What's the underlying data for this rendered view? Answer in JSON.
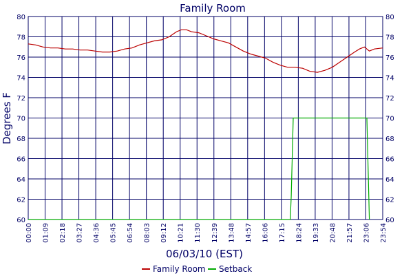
{
  "chart_data": {
    "type": "line",
    "title": "Family Room",
    "xlabel": "06/03/10 (EST)",
    "ylabel": "Degrees F",
    "x_ticks": [
      "00:00",
      "01:09",
      "02:18",
      "03:27",
      "04:36",
      "05:45",
      "06:54",
      "08:03",
      "09:12",
      "10:21",
      "11:30",
      "12:39",
      "13:48",
      "14:57",
      "16:06",
      "17:15",
      "18:24",
      "19:33",
      "20:48",
      "21:57",
      "23:06",
      "23:54"
    ],
    "ylim": [
      60,
      80
    ],
    "y_ticks": [
      60,
      62,
      64,
      66,
      68,
      70,
      72,
      74,
      76,
      78,
      80
    ],
    "grid": true,
    "right_axis": true,
    "legend_position": "bottom-center",
    "series": [
      {
        "name": "Family Room",
        "color": "#bb0000",
        "x": [
          "00:00",
          "00:30",
          "01:00",
          "01:30",
          "02:00",
          "02:30",
          "03:00",
          "03:30",
          "04:00",
          "04:30",
          "05:00",
          "05:30",
          "06:00",
          "06:30",
          "07:00",
          "07:30",
          "08:00",
          "08:30",
          "09:00",
          "09:30",
          "10:00",
          "10:20",
          "10:40",
          "11:00",
          "11:30",
          "12:00",
          "12:30",
          "13:00",
          "13:30",
          "14:00",
          "14:30",
          "15:00",
          "15:30",
          "16:00",
          "16:30",
          "17:00",
          "17:30",
          "18:00",
          "18:30",
          "19:00",
          "19:30",
          "20:00",
          "20:30",
          "21:00",
          "21:30",
          "22:00",
          "22:20",
          "22:40",
          "23:00",
          "23:20",
          "23:54"
        ],
        "values": [
          77.3,
          77.2,
          77.0,
          76.9,
          76.9,
          76.8,
          76.8,
          76.7,
          76.7,
          76.6,
          76.5,
          76.5,
          76.6,
          76.8,
          76.9,
          77.2,
          77.4,
          77.6,
          77.7,
          78.0,
          78.5,
          78.7,
          78.7,
          78.5,
          78.4,
          78.1,
          77.8,
          77.6,
          77.4,
          77.0,
          76.6,
          76.3,
          76.1,
          75.9,
          75.5,
          75.2,
          75.0,
          75.0,
          74.9,
          74.6,
          74.5,
          74.7,
          75.0,
          75.5,
          76.0,
          76.5,
          76.8,
          77.0,
          76.6,
          76.8,
          76.9
        ]
      },
      {
        "name": "Setback",
        "color": "#00aa00",
        "x": [
          "00:00",
          "17:40",
          "17:44",
          "17:52",
          "18:10",
          "22:50",
          "22:55",
          "23:00"
        ],
        "values": [
          60,
          60,
          62.3,
          70,
          70,
          70,
          65,
          60
        ]
      }
    ]
  }
}
